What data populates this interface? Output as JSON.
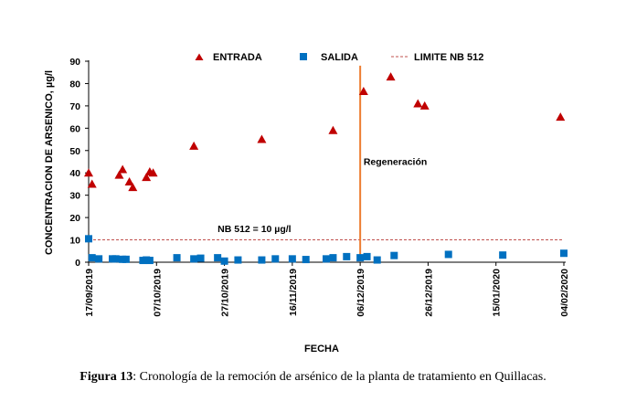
{
  "caption": {
    "label": "Figura 13",
    "text": ": Cronología de la remoción de arsénico de la planta de tratamiento en Quillacas."
  },
  "chart_data": {
    "type": "scatter",
    "xlabel": "FECHA",
    "ylabel": "CONCENTRACION DE ARSENICO, µg/l",
    "x_ticks": [
      "17/09/2019",
      "07/10/2019",
      "27/10/2019",
      "16/11/2019",
      "06/12/2019",
      "26/12/2019",
      "15/01/2020",
      "04/02/2020"
    ],
    "xlim": [
      "17/09/2019",
      "04/02/2020"
    ],
    "ylim": [
      0,
      90
    ],
    "y_ticks": [
      0,
      10,
      20,
      30,
      40,
      50,
      60,
      70,
      80,
      90
    ],
    "grid": false,
    "legend_position": "top",
    "series": [
      {
        "name": "ENTRADA",
        "marker": "triangle",
        "color": "#c00000",
        "points": [
          [
            "17/09/2019",
            40
          ],
          [
            "18/09/2019",
            35
          ],
          [
            "26/09/2019",
            39
          ],
          [
            "27/09/2019",
            41.5
          ],
          [
            "29/09/2019",
            36
          ],
          [
            "30/09/2019",
            33.5
          ],
          [
            "04/10/2019",
            38
          ],
          [
            "05/10/2019",
            40.5
          ],
          [
            "06/10/2019",
            40
          ],
          [
            "18/10/2019",
            52
          ],
          [
            "07/11/2019",
            55
          ],
          [
            "28/11/2019",
            59
          ],
          [
            "07/12/2019",
            76.5
          ],
          [
            "15/12/2019",
            83
          ],
          [
            "23/12/2019",
            71
          ],
          [
            "25/12/2019",
            70
          ],
          [
            "03/02/2020",
            65
          ]
        ]
      },
      {
        "name": "SALIDA",
        "marker": "square",
        "color": "#0070c0",
        "points": [
          [
            "17/09/2019",
            10.5
          ],
          [
            "18/09/2019",
            2
          ],
          [
            "20/09/2019",
            1.5
          ],
          [
            "24/09/2019",
            1.5
          ],
          [
            "25/09/2019",
            1.5
          ],
          [
            "27/09/2019",
            1.3
          ],
          [
            "28/09/2019",
            1.3
          ],
          [
            "03/10/2019",
            0.8
          ],
          [
            "04/10/2019",
            1
          ],
          [
            "05/10/2019",
            0.8
          ],
          [
            "13/10/2019",
            2
          ],
          [
            "18/10/2019",
            1.5
          ],
          [
            "20/10/2019",
            1.8
          ],
          [
            "25/10/2019",
            2
          ],
          [
            "27/10/2019",
            0.5
          ],
          [
            "31/10/2019",
            1
          ],
          [
            "07/11/2019",
            1
          ],
          [
            "11/11/2019",
            1.5
          ],
          [
            "16/11/2019",
            1.5
          ],
          [
            "20/11/2019",
            1.2
          ],
          [
            "26/11/2019",
            1.5
          ],
          [
            "28/11/2019",
            2
          ],
          [
            "02/12/2019",
            2.5
          ],
          [
            "06/12/2019",
            2
          ],
          [
            "08/12/2019",
            2.5
          ],
          [
            "11/12/2019",
            1
          ],
          [
            "16/12/2019",
            3
          ],
          [
            "01/01/2020",
            3.5
          ],
          [
            "17/01/2020",
            3.2
          ],
          [
            "04/02/2020",
            4
          ]
        ]
      },
      {
        "name": "LIMITE NB 512",
        "marker": "line-dashed",
        "color": "#c0504d",
        "value": 10
      }
    ],
    "annotations": [
      {
        "text": "NB 512 = 10 µg/l",
        "x": "25/10/2019",
        "y": 13.5
      },
      {
        "text": "Regeneración",
        "x": "07/12/2019",
        "y": 43.5
      }
    ],
    "vertical_line": {
      "x": "06/12/2019",
      "from": 2,
      "to": 88,
      "color": "#ed7d31"
    }
  }
}
